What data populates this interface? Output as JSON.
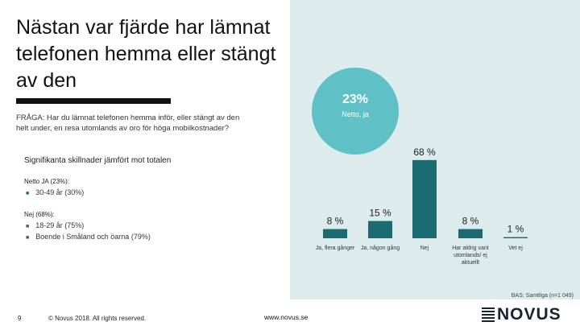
{
  "title": "Nästan var fjärde har lämnat telefonen hemma eller stängt av den",
  "question": "FRÅGA: Har du lämnat telefonen hemma inför, eller stängt av den helt under, en resa utomlands av oro för höga mobilkostnader?",
  "significance": {
    "heading": "Signifikanta skillnader jämfört mot totalen",
    "groups": [
      {
        "label": "Netto JA (23%):",
        "items": [
          "30-49 år (30%)"
        ]
      },
      {
        "label": "Nej (68%):",
        "items": [
          "18-29 år (75%)",
          "Boende i Småland och öarna (79%)"
        ]
      }
    ]
  },
  "summary_bubble": {
    "value": "23%",
    "label": "Netto, ja"
  },
  "chart_data": {
    "type": "bar",
    "title": "",
    "xlabel": "",
    "ylabel": "",
    "ylim": [
      0,
      70
    ],
    "categories": [
      "Ja, flera gånger",
      "Ja, någon gång",
      "Nej",
      "Har aldrig varit utomlands/ ej aktuellt",
      "Vet ej"
    ],
    "values": [
      8,
      15,
      68,
      8,
      1
    ],
    "value_labels": [
      "8 %",
      "15 %",
      "68 %",
      "8 %",
      "1 %"
    ],
    "bar_color": "#1b6b73"
  },
  "footer": {
    "page_number": "9",
    "copyright": "© Novus 2018. All rights reserved.",
    "website": "www.novus.se",
    "base_note": "BAS: Samtliga (n=1 049)",
    "logo_text": "NOVUS"
  }
}
